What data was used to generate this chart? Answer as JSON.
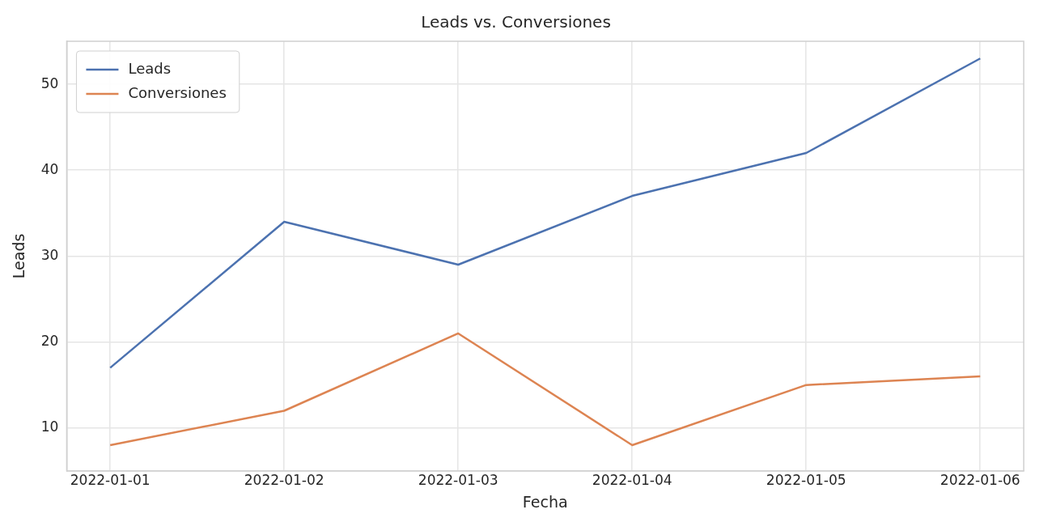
{
  "chart_data": {
    "type": "line",
    "title": "Leads vs. Conversiones",
    "xlabel": "Fecha",
    "ylabel": "Leads",
    "x": [
      "2022-01-01",
      "2022-01-02",
      "2022-01-03",
      "2022-01-04",
      "2022-01-05",
      "2022-01-06"
    ],
    "series": [
      {
        "name": "Leads",
        "color": "#4c72b0",
        "values": [
          17,
          34,
          29,
          37,
          42,
          53
        ]
      },
      {
        "name": "Conversiones",
        "color": "#dd8452",
        "values": [
          8,
          12,
          21,
          8,
          15,
          16
        ]
      }
    ],
    "xlim": [
      "2021-12-31T18:00",
      "2022-01-06T06:00"
    ],
    "xticks": [
      "2022-01-01",
      "2022-01-02",
      "2022-01-03",
      "2022-01-04",
      "2022-01-05",
      "2022-01-06"
    ],
    "ylim": [
      5,
      55
    ],
    "yticks": [
      10,
      20,
      30,
      40,
      50
    ],
    "grid": true,
    "legend": "top left",
    "marker": "none",
    "line_style": "solid"
  }
}
